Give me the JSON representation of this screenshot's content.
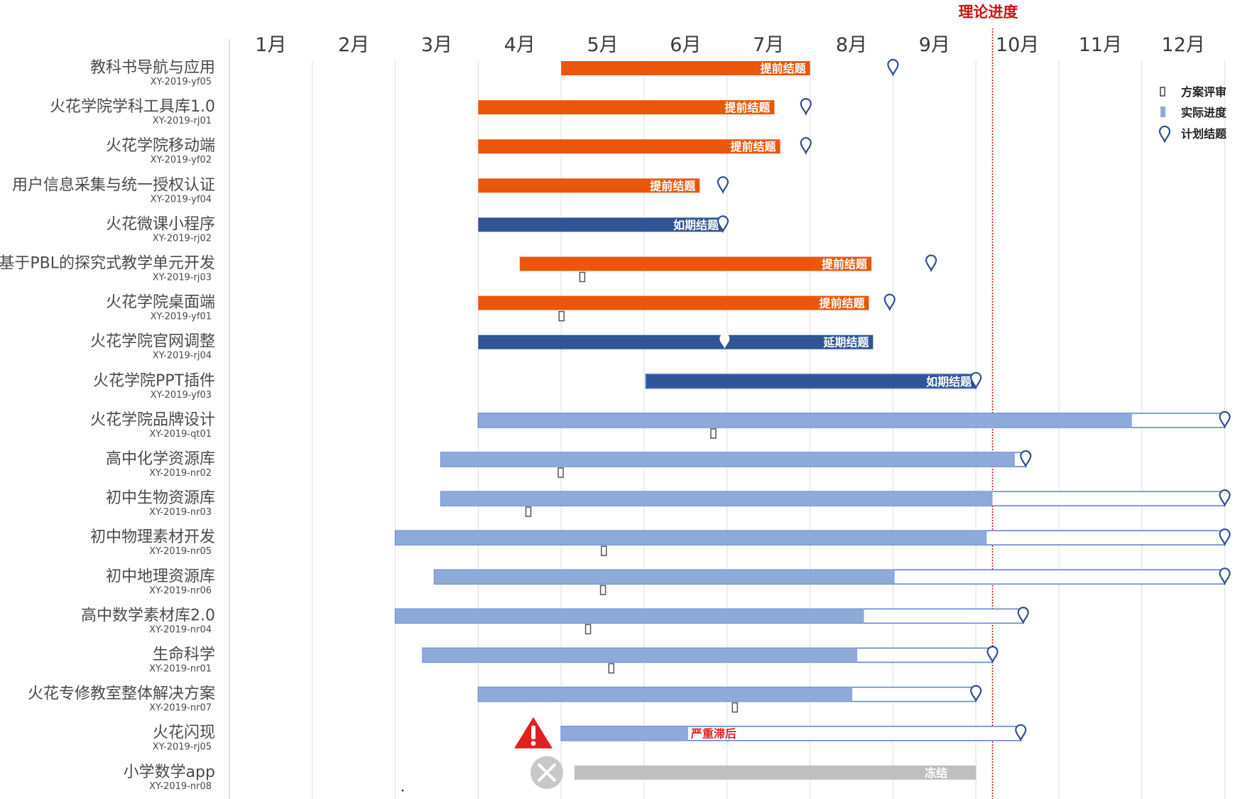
{
  "chart_data": {
    "type": "gantt",
    "title": "",
    "months": [
      "1月",
      "2月",
      "3月",
      "4月",
      "5月",
      "6月",
      "7月",
      "8月",
      "9月",
      "10月",
      "11月",
      "12月"
    ],
    "x_unit": "month (0 = start of 1月, 12 = end of 12月)",
    "xlim": [
      0,
      12
    ],
    "theory_progress": {
      "label": "理论进度",
      "month": 9.2
    },
    "legend": [
      {
        "key": "review",
        "label": "方案评审"
      },
      {
        "key": "actual",
        "label": "实际进度"
      },
      {
        "key": "planned",
        "label": "计划结题"
      }
    ],
    "colors": {
      "early": "#e8570a",
      "ontime": "#2f5597",
      "progress": "#8eaadb",
      "outline": "#5b7fc7",
      "frozen": "#bfbfbf",
      "theory": "#cc1111",
      "marker": "#2f4f8f",
      "warning": "#e02020",
      "grid": "#dddddd"
    },
    "projects": [
      {
        "name": "教科书导航与应用",
        "code": "XY-2019-yf05",
        "status": "early",
        "start": 4.0,
        "end": 7.0,
        "planned": 8.0,
        "review": null,
        "label": "提前结题"
      },
      {
        "name": "火花学院学科工具库1.0",
        "code": "XY-2019-rj01",
        "status": "early",
        "start": 3.0,
        "end": 6.57,
        "planned": 6.95,
        "review": null,
        "label": "提前结题"
      },
      {
        "name": "火花学院移动端",
        "code": "XY-2019-yf02",
        "status": "early",
        "start": 3.0,
        "end": 6.64,
        "planned": 6.95,
        "review": null,
        "label": "提前结题"
      },
      {
        "name": "用户信息采集与统一授权认证",
        "code": "XY-2019-yf04",
        "status": "early",
        "start": 3.0,
        "end": 5.67,
        "planned": 5.95,
        "review": null,
        "label": "提前结题"
      },
      {
        "name": "火花微课小程序",
        "code": "XY-2019-rj02",
        "status": "ontime",
        "start": 3.0,
        "end": 5.95,
        "planned": 5.95,
        "review": null,
        "label": "如期结题"
      },
      {
        "name": "基于PBL的探究式教学单元开发",
        "code": "XY-2019-rj03",
        "status": "early",
        "start": 3.5,
        "end": 7.74,
        "planned": 8.46,
        "review": 4.25,
        "label": "提前结题"
      },
      {
        "name": "火花学院桌面端",
        "code": "XY-2019-yf01",
        "status": "early",
        "start": 3.0,
        "end": 7.71,
        "planned": 7.96,
        "review": 4.0,
        "label": "提前结题"
      },
      {
        "name": "火花学院官网调整",
        "code": "XY-2019-rj04",
        "status": "delayed",
        "start": 3.0,
        "end": 7.76,
        "planned": 5.97,
        "review": null,
        "label": "延期结题"
      },
      {
        "name": "火花学院PPT插件",
        "code": "XY-2019-yf03",
        "status": "ontime",
        "start": 5.02,
        "end": 9.0,
        "planned": 9.0,
        "review": null,
        "label": "如期结题"
      },
      {
        "name": "火花学院品牌设计",
        "code": "XY-2019-qt01",
        "status": "inprogress",
        "start": 3.0,
        "end": 12.0,
        "actual": 10.88,
        "planned": 12.0,
        "review": 5.83,
        "label": ""
      },
      {
        "name": "高中化学资源库",
        "code": "XY-2019-nr02",
        "status": "inprogress",
        "start": 2.55,
        "end": 9.6,
        "actual": 9.47,
        "planned": 9.6,
        "review": 3.99,
        "label": ""
      },
      {
        "name": "初中生物资源库",
        "code": "XY-2019-nr03",
        "status": "inprogress",
        "start": 2.55,
        "end": 12.0,
        "actual": 9.2,
        "planned": 12.0,
        "review": 3.6,
        "label": ""
      },
      {
        "name": "初中物理素材开发",
        "code": "XY-2019-nr05",
        "status": "inprogress",
        "start": 2.0,
        "end": 12.0,
        "actual": 9.13,
        "planned": 12.0,
        "review": 4.51,
        "label": ""
      },
      {
        "name": "初中地理资源库",
        "code": "XY-2019-nr06",
        "status": "inprogress",
        "start": 2.47,
        "end": 12.0,
        "actual": 8.02,
        "planned": 12.0,
        "review": 4.5,
        "label": ""
      },
      {
        "name": "高中数学素材库2.0",
        "code": "XY-2019-nr04",
        "status": "inprogress",
        "start": 2.0,
        "end": 9.57,
        "actual": 7.65,
        "planned": 9.57,
        "review": 4.32,
        "label": ""
      },
      {
        "name": "生命科学",
        "code": "XY-2019-nr01",
        "status": "inprogress",
        "start": 2.33,
        "end": 9.2,
        "actual": 7.57,
        "planned": 9.2,
        "review": 4.6,
        "label": ""
      },
      {
        "name": "火花专修教室整体解决方案",
        "code": "XY-2019-nr07",
        "status": "inprogress",
        "start": 3.0,
        "end": 9.0,
        "actual": 7.51,
        "planned": 9.0,
        "review": 6.09,
        "label": ""
      },
      {
        "name": "火花闪现",
        "code": "XY-2019-rj05",
        "status": "lagging",
        "start": 4.0,
        "end": 9.54,
        "actual": 5.53,
        "planned": 9.54,
        "review": null,
        "label": "严重滞后"
      },
      {
        "name": "小学数学app",
        "code": "XY-2019-nr08",
        "status": "frozen",
        "start": 4.16,
        "end": 9.0,
        "planned": null,
        "review": null,
        "label": "冻结"
      }
    ]
  }
}
